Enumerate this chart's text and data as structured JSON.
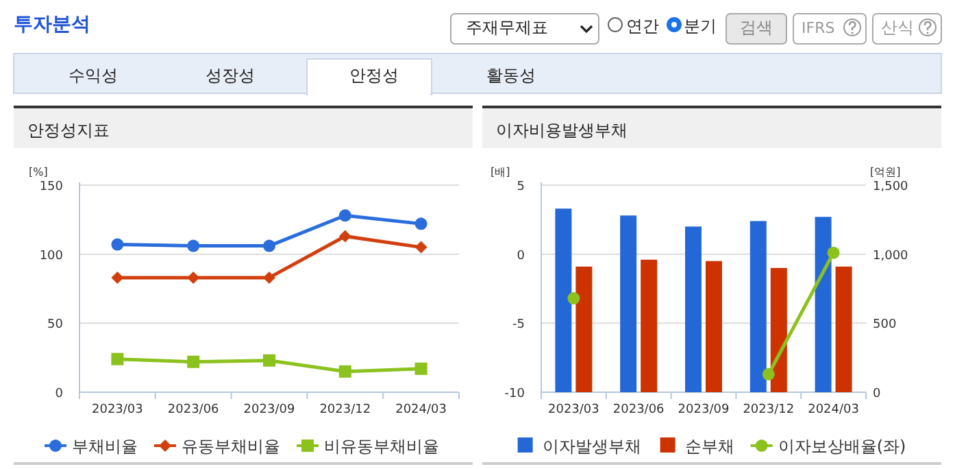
{
  "chart_data": [
    {
      "type": "line",
      "title": "안정성지표",
      "ylabel": "[%]",
      "categories": [
        "2023/03",
        "2023/06",
        "2023/09",
        "2023/12",
        "2024/03"
      ],
      "series": [
        {
          "name": "부채비율",
          "color": "#2a6ddb",
          "marker": "circle",
          "values": [
            107,
            106,
            106,
            128,
            122
          ]
        },
        {
          "name": "유동부채비율",
          "color": "#d23f0f",
          "marker": "diamond",
          "values": [
            83,
            83,
            83,
            113,
            105
          ]
        },
        {
          "name": "비유동부채비율",
          "color": "#8cc21e",
          "marker": "square",
          "values": [
            24,
            22,
            23,
            15,
            17
          ]
        }
      ],
      "ylim": [
        0,
        150
      ],
      "yticks": [
        0,
        50,
        100,
        150
      ],
      "grid": "y",
      "legend": "bottom",
      "annotations": [
        "투자분석",
        "주재무제표",
        "연간",
        "분기",
        "검색",
        "IFRS",
        "산식",
        "수익성",
        "성장성",
        "안정성",
        "활동성"
      ]
    },
    {
      "type": "bar",
      "title": "이자비용발생부채",
      "ylabel": "[배]",
      "y2label": "[억원]",
      "categories": [
        "2023/03",
        "2023/06",
        "2023/09",
        "2023/12",
        "2024/03"
      ],
      "series": [
        {
          "name": "이자발생부채",
          "color": "#2468d8",
          "axis": "y2",
          "values": [
            1330,
            1280,
            1200,
            1240,
            1270
          ]
        },
        {
          "name": "순부채",
          "color": "#cc3300",
          "axis": "y2",
          "values": [
            910,
            960,
            950,
            900,
            910
          ]
        },
        {
          "name": "이자보상배율(좌)",
          "type": "line",
          "color": "#8cc21e",
          "axis": "y",
          "marker": "circle",
          "values": [
            -3.2,
            null,
            null,
            -8.7,
            0.1
          ]
        }
      ],
      "ylim": [
        -10,
        5
      ],
      "yticks": [
        -10,
        -5,
        0,
        5
      ],
      "y2lim": [
        0,
        1500
      ],
      "y2ticks": [
        {
          "value": 0,
          "label": "0"
        },
        {
          "value": 500,
          "label": "500"
        },
        {
          "value": 1000,
          "label": "1,000"
        },
        {
          "value": 1500,
          "label": "1,500"
        }
      ],
      "grid": "y",
      "legend": "bottom"
    }
  ]
}
